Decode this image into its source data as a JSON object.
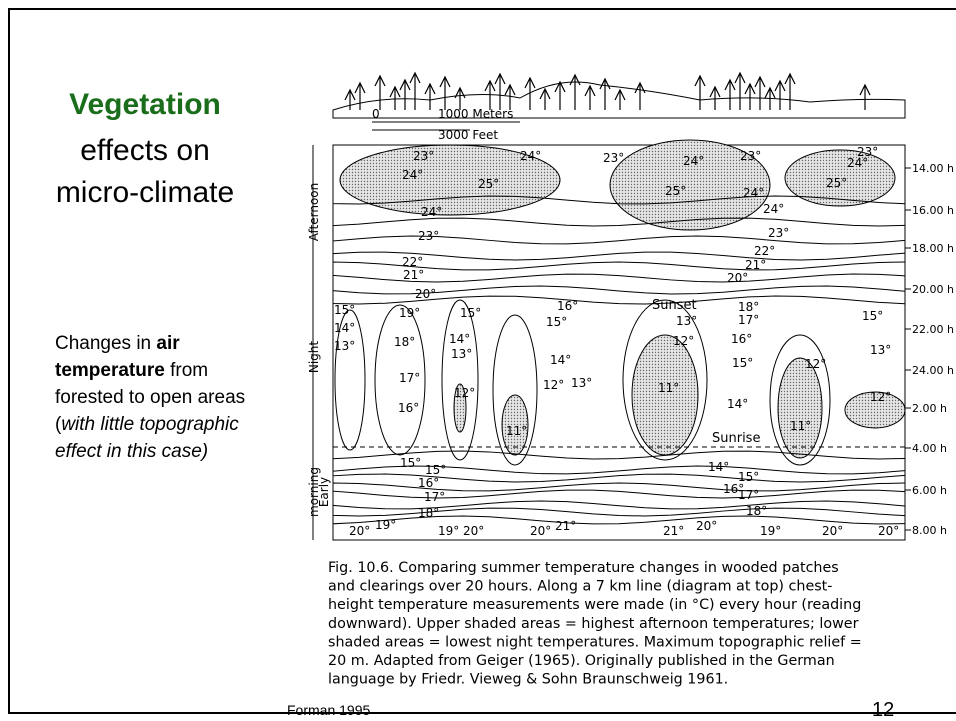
{
  "slide": {
    "title": {
      "highlight": "Vegetation",
      "line2": "effects on",
      "line3": "micro-climate"
    },
    "body": {
      "t1": "Changes in ",
      "b1": "air temperature",
      "t2": " from forested to open areas (",
      "i1": "with little topographic effect in this case)"
    },
    "figure": {
      "scale": {
        "zero": "0",
        "meters": "1000 Meters",
        "feet": "3000 Feet"
      },
      "periods": {
        "afternoon": "Afternoon",
        "night": "Night",
        "early1": "Early",
        "early2": "morning"
      },
      "times": [
        "14.00 h",
        "16.00 h",
        "18.00 h",
        "20.00 h",
        "22.00 h",
        "24.00 h",
        "2.00 h",
        "4.00 h",
        "6.00 h",
        "8.00 h"
      ],
      "events": {
        "sunset": "Sunset",
        "sunrise": "Sunrise"
      },
      "temps": [
        "23°",
        "24°",
        "23°",
        "24°",
        "23°",
        "23°",
        "24°",
        "24°",
        "25°",
        "25°",
        "24°",
        "25°",
        "24°",
        "24°",
        "23°",
        "23°",
        "22°",
        "22°",
        "21°",
        "21°",
        "20°",
        "20°",
        "15°",
        "19°",
        "15°",
        "16°",
        "15°",
        "13°",
        "18°",
        "17°",
        "15°",
        "14°",
        "14°",
        "12°",
        "16°",
        "13°",
        "18°",
        "13°",
        "13°",
        "14°",
        "15°",
        "12°",
        "17°",
        "12°",
        "13°",
        "11°",
        "12°",
        "12°",
        "16°",
        "14°",
        "11°",
        "11°",
        "15°",
        "15°",
        "14°",
        "15°",
        "16°",
        "16°",
        "17°",
        "17°",
        "18°",
        "18°",
        "20°",
        "19°",
        "19°",
        "20°",
        "20°",
        "21°",
        "21°",
        "20°",
        "19°",
        "20°",
        "20°"
      ],
      "caption": [
        "Fig. 10.6. Comparing summer temperature changes in wooded patches",
        "and clearings over 20 hours. Along a 7 km line (diagram at top) chest-",
        "height temperature measurements were made (in °C) every hour (reading",
        "downward). Upper shaded areas = highest afternoon temperatures; lower",
        "shaded areas = lowest night temperatures. Maximum topographic relief =",
        "20 m. Adapted from Geiger (1965). Originally published in the German",
        "language by Friedr. Vieweg & Sohn Braunschweig 1961."
      ]
    },
    "footer": {
      "source": "Forman 1995",
      "page": "12"
    }
  }
}
